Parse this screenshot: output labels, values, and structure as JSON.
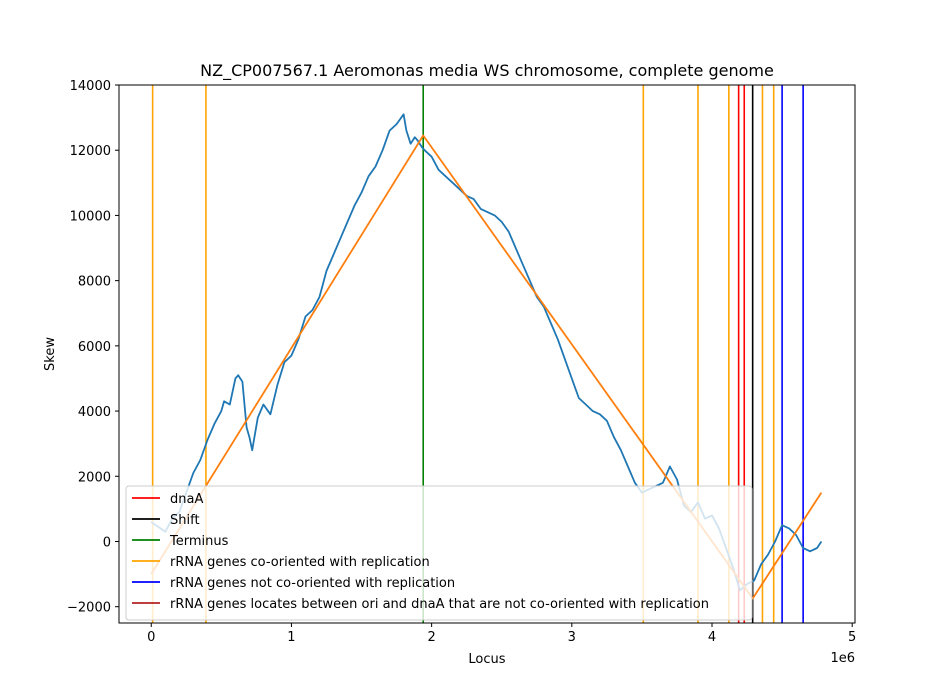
{
  "chart_data": {
    "type": "line",
    "title": "NZ_CP007567.1 Aeromonas media WS chromosome, complete genome",
    "xlabel": "Locus",
    "ylabel": "Skew",
    "x_offset_label": "1e6",
    "xlim": [
      -230000,
      5020000
    ],
    "ylim": [
      -2500,
      14000
    ],
    "x_ticks": [
      0,
      1,
      2,
      3,
      4,
      5
    ],
    "y_ticks": [
      -2000,
      0,
      2000,
      4000,
      6000,
      8000,
      10000,
      12000,
      14000
    ],
    "y_tick_labels": [
      "−2000",
      "0",
      "2000",
      "4000",
      "6000",
      "8000",
      "10000",
      "12000",
      "14000"
    ],
    "grid": false,
    "legend_position": "lower-left",
    "series": [
      {
        "color": "#1f77b4",
        "x": [
          0,
          100000,
          150000,
          200000,
          250000,
          300000,
          350000,
          400000,
          450000,
          500000,
          520000,
          560000,
          600000,
          620000,
          650000,
          680000,
          700000,
          720000,
          760000,
          800000,
          850000,
          900000,
          950000,
          1000000,
          1050000,
          1100000,
          1150000,
          1200000,
          1250000,
          1300000,
          1350000,
          1400000,
          1450000,
          1500000,
          1550000,
          1600000,
          1650000,
          1700000,
          1750000,
          1800000,
          1820000,
          1850000,
          1880000,
          1900000,
          1930000,
          1950000,
          2000000,
          2050000,
          2100000,
          2150000,
          2200000,
          2250000,
          2300000,
          2350000,
          2400000,
          2450000,
          2500000,
          2550000,
          2600000,
          2650000,
          2700000,
          2750000,
          2800000,
          2850000,
          2900000,
          2950000,
          3000000,
          3050000,
          3100000,
          3150000,
          3200000,
          3250000,
          3300000,
          3350000,
          3400000,
          3450000,
          3500000,
          3550000,
          3600000,
          3650000,
          3700000,
          3750000,
          3800000,
          3850000,
          3900000,
          3950000,
          4000000,
          4050000,
          4100000,
          4150000,
          4200000,
          4250000,
          4300000,
          4350000,
          4400000,
          4450000,
          4500000,
          4550000,
          4600000,
          4650000,
          4700000,
          4750000,
          4780000
        ],
        "y": [
          600,
          300,
          700,
          900,
          1500,
          2100,
          2500,
          3100,
          3600,
          4000,
          4300,
          4200,
          5000,
          5100,
          4900,
          3500,
          3200,
          2800,
          3800,
          4200,
          3900,
          4800,
          5500,
          5700,
          6200,
          6900,
          7100,
          7500,
          8300,
          8800,
          9300,
          9800,
          10300,
          10700,
          11200,
          11500,
          12000,
          12600,
          12800,
          13100,
          12600,
          12200,
          12400,
          12300,
          12100,
          12000,
          11800,
          11400,
          11200,
          11000,
          10800,
          10600,
          10500,
          10200,
          10100,
          10000,
          9800,
          9500,
          9000,
          8500,
          8000,
          7500,
          7200,
          6700,
          6200,
          5600,
          5000,
          4400,
          4200,
          4000,
          3900,
          3700,
          3200,
          2800,
          2300,
          1800,
          1500,
          1600,
          1700,
          1800,
          2300,
          1900,
          1100,
          900,
          1200,
          700,
          800,
          400,
          -200,
          -800,
          -1500,
          -1300,
          -1200,
          -700,
          -400,
          0,
          500,
          400,
          200,
          -200,
          -300,
          -200,
          0
        ]
      },
      {
        "color": "#ff7f0e",
        "x": [
          0,
          1940000,
          4290000,
          4780000
        ],
        "y": [
          -1000,
          12450,
          -1750,
          1500
        ]
      }
    ],
    "vlines": [
      {
        "x": 10000,
        "color": "#ffa500",
        "group": "rRNA genes co-oriented with replication"
      },
      {
        "x": 390000,
        "color": "#ffa500",
        "group": "rRNA genes co-oriented with replication"
      },
      {
        "x": 1940000,
        "color": "#008000",
        "group": "Terminus"
      },
      {
        "x": 3510000,
        "color": "#ffa500",
        "group": "rRNA genes co-oriented with replication"
      },
      {
        "x": 3900000,
        "color": "#ffa500",
        "group": "rRNA genes co-oriented with replication"
      },
      {
        "x": 4120000,
        "color": "#ffa500",
        "group": "rRNA genes co-oriented with replication"
      },
      {
        "x": 4190000,
        "color": "#ff0000",
        "group": "dnaA"
      },
      {
        "x": 4230000,
        "color": "#ff0000",
        "group": "dnaA"
      },
      {
        "x": 4290000,
        "color": "#000000",
        "group": "Shift"
      },
      {
        "x": 4360000,
        "color": "#ffa500",
        "group": "rRNA genes co-oriented with replication"
      },
      {
        "x": 4440000,
        "color": "#ffa500",
        "group": "rRNA genes co-oriented with replication"
      },
      {
        "x": 4500000,
        "color": "#0000ff",
        "group": "rRNA genes not co-oriented with replication"
      },
      {
        "x": 4650000,
        "color": "#0000ff",
        "group": "rRNA genes not co-oriented with replication"
      }
    ],
    "legend": [
      {
        "label": "dnaA",
        "color": "#ff0000"
      },
      {
        "label": "Shift",
        "color": "#000000"
      },
      {
        "label": "Terminus",
        "color": "#008000"
      },
      {
        "label": "rRNA genes co-oriented with replication",
        "color": "#ffa500"
      },
      {
        "label": "rRNA genes not co-oriented with replication",
        "color": "#0000ff"
      },
      {
        "label": "rRNA genes locates between ori and dnaA that are not co-oriented with replication",
        "color": "#b22222"
      }
    ]
  }
}
